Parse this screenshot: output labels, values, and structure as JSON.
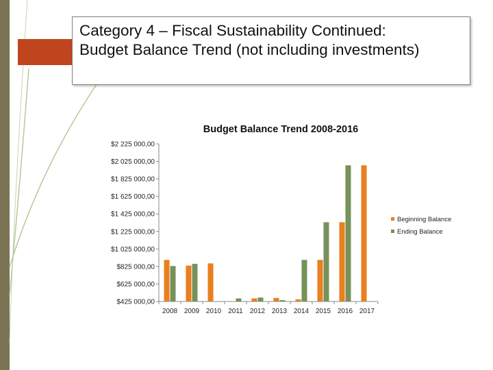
{
  "slide": {
    "title_line1": "Category 4 – Fiscal Sustainability Continued:",
    "title_line2": "Budget Balance Trend (not including investments)"
  },
  "colors": {
    "beginning": "#ea7f1e",
    "ending": "#77915a",
    "accent_tab": "#c0441e",
    "left_bar": "#7a7354",
    "deco_lines": "#b9c79a"
  },
  "chart_data": {
    "type": "bar",
    "title": "Budget Balance Trend 2008-2016",
    "categories": [
      "2008",
      "2009",
      "2010",
      "2011",
      "2012",
      "2013",
      "2014",
      "2015",
      "2016",
      "2017"
    ],
    "series": [
      {
        "name": "Beginning Balance",
        "values": [
          900000,
          835000,
          860000,
          395000,
          460000,
          465000,
          450000,
          900000,
          1330000,
          1980000
        ]
      },
      {
        "name": "Ending Balance",
        "values": [
          830000,
          855000,
          390000,
          460000,
          470000,
          440000,
          900000,
          1330000,
          1980000,
          null
        ]
      }
    ],
    "ylim": [
      425000,
      2225000
    ],
    "yticks": [
      425000,
      625000,
      825000,
      1025000,
      1225000,
      1425000,
      1625000,
      1825000,
      2025000,
      2225000
    ],
    "ytick_labels": [
      "$425 000,00",
      "$625 000,00",
      "$825 000,00",
      "$1 025 000,00",
      "$1 225 000,00",
      "$1 425 000,00",
      "$1 625 000,00",
      "$1 825 000,00",
      "$2 025 000,00",
      "$2 225 000,00"
    ],
    "legend_position": "right",
    "grid": false
  }
}
